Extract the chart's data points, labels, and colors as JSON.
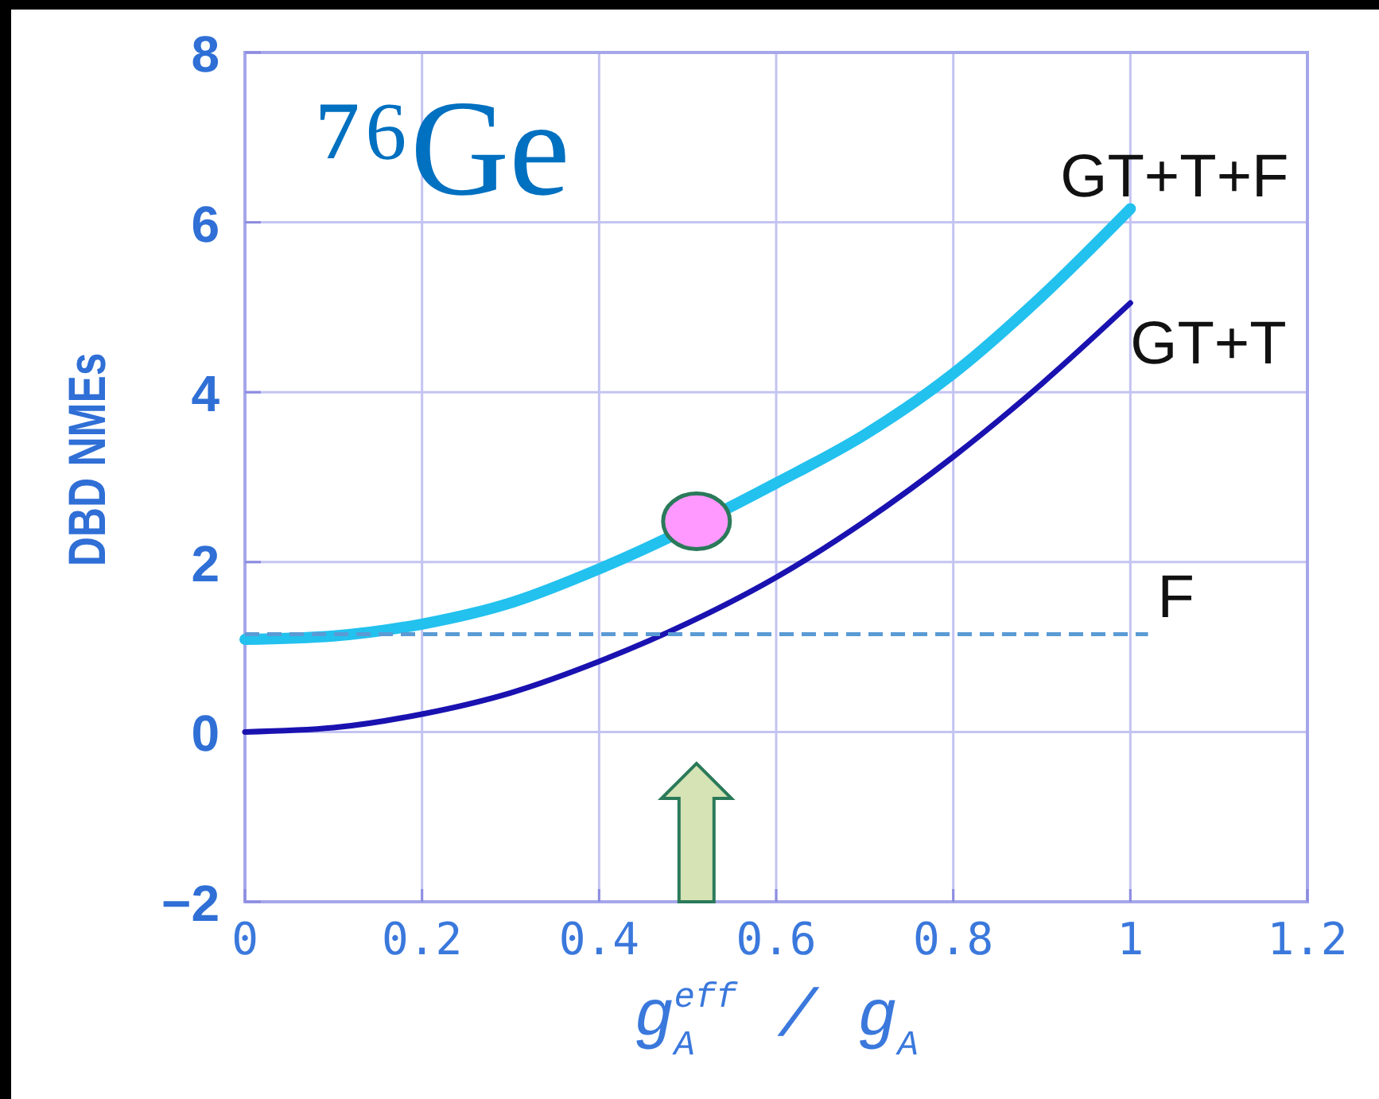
{
  "chart_data": {
    "type": "line",
    "title": "⁷⁶Ge",
    "xlabel": "g$_{A}$$^{eff}$ / g$_{A}$",
    "ylabel": "DBD NMEs",
    "x": [
      0,
      0.1,
      0.2,
      0.3,
      0.4,
      0.5,
      0.6,
      0.7,
      0.8,
      0.9,
      1
    ],
    "series": [
      {
        "name": "GT+T+F",
        "color": "#22c1ee",
        "x": [
          0,
          0.1,
          0.2,
          0.3,
          0.4,
          0.45,
          0.6,
          0.7,
          0.8,
          0.9,
          1
        ],
        "values": [
          1.09,
          1.13,
          1.27,
          1.52,
          1.92,
          2.15,
          2.93,
          3.5,
          4.22,
          5.13,
          6.16
        ]
      },
      {
        "name": "GT+T",
        "color": "#1a12b0",
        "values": [
          0,
          0.05,
          0.21,
          0.46,
          0.83,
          1.28,
          1.82,
          2.48,
          3.24,
          4.1,
          5.05
        ]
      },
      {
        "name": "F",
        "color": "#5b9bd5",
        "line_style": "dashed",
        "x": [
          0,
          1.02
        ],
        "values": [
          1.15,
          1.15
        ]
      },
      {
        "type": "scatter",
        "color": "#ff99ff",
        "marker": "circle",
        "x": [
          0.51
        ],
        "values": [
          2.48
        ]
      }
    ],
    "xlim": [
      0,
      1.2
    ],
    "xticks": [
      0,
      0.2,
      0.4,
      0.6,
      0.8,
      1,
      1.2
    ],
    "ylim": [
      -2,
      8
    ],
    "yticks": [
      {
        "value": -2,
        "label": "−2"
      },
      0,
      2,
      4,
      6,
      8
    ],
    "grid": true,
    "line_style": "solid"
  }
}
